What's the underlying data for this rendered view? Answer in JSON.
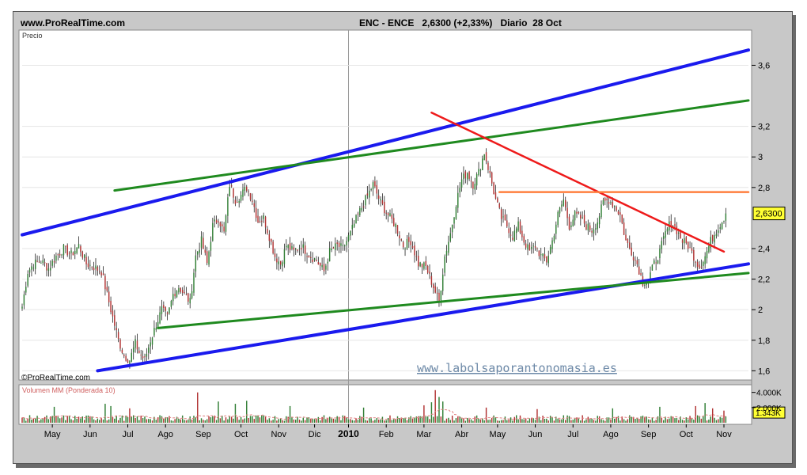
{
  "header": {
    "site": "www.ProRealTime.com",
    "ticker": "ENC - ENCE",
    "price_change": "2,6300 (+2,33%)",
    "period": "Diario",
    "date": "28 Oct"
  },
  "price_panel": {
    "label": "Precio",
    "copyright": "©ProRealTime.com",
    "watermark": "www.labolsaporantonomasia.es",
    "last_price_tag": "2,6300"
  },
  "volume_panel": {
    "label": "Volumen MM (Ponderada 10)",
    "tick_top": "4.000K",
    "tick_mid": "2.000K",
    "last_volume_tag": "1.343K"
  },
  "colors": {
    "frame": "#c8c8c8",
    "up": "#2e7d32",
    "down": "#b03030",
    "blue_channel": "#1a1aee",
    "green_channel": "#1f8a1f",
    "red_trend": "#ee1a1a",
    "orange_resistance": "#ff7f3f",
    "volume_ma": "#e08080",
    "watermark": "#6e8aa8"
  },
  "chart_data": {
    "type": "candlestick",
    "y_axis": {
      "range": [
        1.55,
        3.82
      ],
      "ticks": [
        {
          "value": 3.6,
          "label": "3,6"
        },
        {
          "value": 3.2,
          "label": "3,2"
        },
        {
          "value": 3.0,
          "label": "3"
        },
        {
          "value": 2.8,
          "label": "2,8"
        },
        {
          "value": 2.4,
          "label": "2,4"
        },
        {
          "value": 2.2,
          "label": "2,2"
        },
        {
          "value": 2.0,
          "label": "2"
        },
        {
          "value": 1.8,
          "label": "1,8"
        },
        {
          "value": 1.6,
          "label": "1,6"
        }
      ]
    },
    "x_axis": {
      "range": [
        0,
        385
      ],
      "labels": [
        {
          "idx": 16,
          "label": "May",
          "bold": false
        },
        {
          "idx": 36,
          "label": "Jun",
          "bold": false
        },
        {
          "idx": 56,
          "label": "Jul",
          "bold": false
        },
        {
          "idx": 76,
          "label": "Ago",
          "bold": false
        },
        {
          "idx": 96,
          "label": "Sep",
          "bold": false
        },
        {
          "idx": 116,
          "label": "Oct",
          "bold": false
        },
        {
          "idx": 136,
          "label": "Nov",
          "bold": false
        },
        {
          "idx": 155,
          "label": "Dic",
          "bold": false
        },
        {
          "idx": 173,
          "label": "2010",
          "bold": true
        },
        {
          "idx": 193,
          "label": "Feb",
          "bold": false
        },
        {
          "idx": 213,
          "label": "Mar",
          "bold": false
        },
        {
          "idx": 233,
          "label": "Abr",
          "bold": false
        },
        {
          "idx": 252,
          "label": "May",
          "bold": false
        },
        {
          "idx": 272,
          "label": "Jun",
          "bold": false
        },
        {
          "idx": 292,
          "label": "Jul",
          "bold": false
        },
        {
          "idx": 312,
          "label": "Ago",
          "bold": false
        },
        {
          "idx": 332,
          "label": "Sep",
          "bold": false
        },
        {
          "idx": 352,
          "label": "Oct",
          "bold": false
        },
        {
          "idx": 372,
          "label": "Nov",
          "bold": false
        }
      ],
      "year_separator_idx": 173
    },
    "last_close": 2.63,
    "close_waypoints": [
      [
        0,
        2.02
      ],
      [
        3,
        2.25
      ],
      [
        6,
        2.3
      ],
      [
        10,
        2.32
      ],
      [
        14,
        2.27
      ],
      [
        18,
        2.35
      ],
      [
        22,
        2.4
      ],
      [
        26,
        2.36
      ],
      [
        30,
        2.42
      ],
      [
        34,
        2.3
      ],
      [
        38,
        2.28
      ],
      [
        42,
        2.25
      ],
      [
        45,
        2.1
      ],
      [
        48,
        1.95
      ],
      [
        51,
        1.8
      ],
      [
        54,
        1.7
      ],
      [
        57,
        1.67
      ],
      [
        60,
        1.78
      ],
      [
        62,
        1.72
      ],
      [
        65,
        1.67
      ],
      [
        68,
        1.8
      ],
      [
        71,
        1.9
      ],
      [
        74,
        2.0
      ],
      [
        77,
        1.95
      ],
      [
        80,
        2.1
      ],
      [
        83,
        2.15
      ],
      [
        86,
        2.1
      ],
      [
        89,
        2.05
      ],
      [
        92,
        2.35
      ],
      [
        95,
        2.45
      ],
      [
        98,
        2.3
      ],
      [
        101,
        2.55
      ],
      [
        104,
        2.6
      ],
      [
        107,
        2.5
      ],
      [
        110,
        2.82
      ],
      [
        113,
        2.72
      ],
      [
        116,
        2.75
      ],
      [
        119,
        2.8
      ],
      [
        122,
        2.72
      ],
      [
        125,
        2.58
      ],
      [
        128,
        2.6
      ],
      [
        131,
        2.48
      ],
      [
        134,
        2.35
      ],
      [
        137,
        2.3
      ],
      [
        140,
        2.42
      ],
      [
        144,
        2.38
      ],
      [
        148,
        2.42
      ],
      [
        152,
        2.36
      ],
      [
        156,
        2.32
      ],
      [
        160,
        2.25
      ],
      [
        163,
        2.38
      ],
      [
        167,
        2.42
      ],
      [
        170,
        2.4
      ],
      [
        174,
        2.5
      ],
      [
        178,
        2.62
      ],
      [
        182,
        2.72
      ],
      [
        186,
        2.82
      ],
      [
        190,
        2.7
      ],
      [
        194,
        2.62
      ],
      [
        198,
        2.55
      ],
      [
        202,
        2.42
      ],
      [
        206,
        2.45
      ],
      [
        210,
        2.3
      ],
      [
        214,
        2.28
      ],
      [
        218,
        2.15
      ],
      [
        221,
        2.05
      ],
      [
        224,
        2.35
      ],
      [
        227,
        2.5
      ],
      [
        230,
        2.7
      ],
      [
        233,
        2.85
      ],
      [
        236,
        2.9
      ],
      [
        239,
        2.82
      ],
      [
        242,
        2.9
      ],
      [
        245,
        3.03
      ],
      [
        248,
        2.88
      ],
      [
        251,
        2.72
      ],
      [
        254,
        2.6
      ],
      [
        257,
        2.55
      ],
      [
        260,
        2.48
      ],
      [
        263,
        2.55
      ],
      [
        266,
        2.45
      ],
      [
        269,
        2.38
      ],
      [
        272,
        2.42
      ],
      [
        275,
        2.35
      ],
      [
        278,
        2.32
      ],
      [
        281,
        2.45
      ],
      [
        284,
        2.62
      ],
      [
        287,
        2.72
      ],
      [
        290,
        2.55
      ],
      [
        293,
        2.62
      ],
      [
        296,
        2.6
      ],
      [
        299,
        2.55
      ],
      [
        302,
        2.52
      ],
      [
        305,
        2.58
      ],
      [
        308,
        2.7
      ],
      [
        311,
        2.72
      ],
      [
        314,
        2.68
      ],
      [
        317,
        2.62
      ],
      [
        320,
        2.45
      ],
      [
        323,
        2.38
      ],
      [
        326,
        2.3
      ],
      [
        329,
        2.18
      ],
      [
        332,
        2.2
      ],
      [
        335,
        2.3
      ],
      [
        338,
        2.38
      ],
      [
        341,
        2.5
      ],
      [
        344,
        2.58
      ],
      [
        347,
        2.52
      ],
      [
        350,
        2.45
      ],
      [
        353,
        2.42
      ],
      [
        356,
        2.35
      ],
      [
        359,
        2.28
      ],
      [
        362,
        2.35
      ],
      [
        365,
        2.45
      ],
      [
        368,
        2.52
      ],
      [
        371,
        2.58
      ],
      [
        373,
        2.63
      ]
    ],
    "trend_lines": [
      {
        "color": "blue",
        "from": [
          0,
          2.49
        ],
        "to": [
          385,
          3.7
        ]
      },
      {
        "color": "blue",
        "from": [
          40,
          1.6
        ],
        "to": [
          385,
          2.3
        ]
      },
      {
        "color": "green",
        "from": [
          49,
          2.78
        ],
        "to": [
          385,
          3.37
        ]
      },
      {
        "color": "green",
        "from": [
          72,
          1.88
        ],
        "to": [
          385,
          2.24
        ]
      },
      {
        "color": "red",
        "from": [
          217,
          3.29
        ],
        "to": [
          372,
          2.38
        ]
      },
      {
        "color": "orange",
        "from": [
          253,
          2.77
        ],
        "to": [
          385,
          2.77
        ]
      }
    ],
    "volume": {
      "range_k": [
        0,
        4800
      ],
      "ticks_k": [
        4000,
        2000
      ],
      "last_k": 1343,
      "spikes": [
        [
          17,
          2100
        ],
        [
          44,
          2500
        ],
        [
          47,
          2200
        ],
        [
          57,
          1900
        ],
        [
          93,
          4000
        ],
        [
          104,
          2800
        ],
        [
          113,
          2500
        ],
        [
          119,
          2900
        ],
        [
          142,
          2200
        ],
        [
          181,
          2000
        ],
        [
          213,
          2300
        ],
        [
          217,
          2700
        ],
        [
          219,
          4300
        ],
        [
          221,
          3400
        ],
        [
          223,
          2800
        ],
        [
          246,
          2000
        ],
        [
          273,
          1800
        ],
        [
          313,
          1900
        ],
        [
          338,
          2100
        ],
        [
          357,
          2200
        ],
        [
          362,
          2600
        ],
        [
          366,
          1900
        ],
        [
          372,
          1600
        ]
      ]
    }
  }
}
